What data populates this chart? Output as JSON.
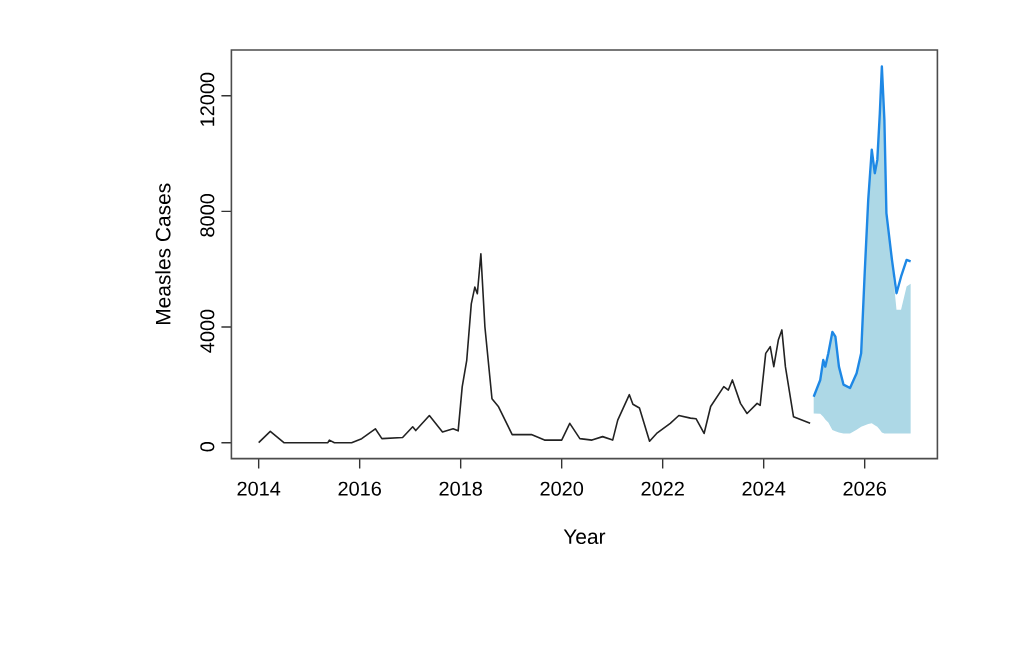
{
  "chart_data": {
    "type": "line",
    "xlabel": "Year",
    "ylabel": "Measles Cases",
    "xlim": [
      2013.46,
      2027.44
    ],
    "ylim": [
      -550,
      13580
    ],
    "xticks": [
      2014,
      2016,
      2018,
      2020,
      2022,
      2024,
      2026
    ],
    "yticks": [
      0,
      4000,
      8000,
      12000
    ],
    "series": [
      {
        "color": "#222222",
        "x": [
          2014.0,
          2014.23,
          2014.5,
          2015.37,
          2015.4,
          2015.5,
          2015.84,
          2016.04,
          2016.31,
          2016.44,
          2016.85,
          2017.05,
          2017.11,
          2017.38,
          2017.64,
          2017.85,
          2017.95,
          2018.03,
          2018.12,
          2018.21,
          2018.28,
          2018.33,
          2018.4,
          2018.48,
          2018.62,
          2018.75,
          2019.02,
          2019.4,
          2019.66,
          2020.0,
          2020.16,
          2020.36,
          2020.6,
          2020.81,
          2021.01,
          2021.11,
          2021.34,
          2021.41,
          2021.54,
          2021.74,
          2021.88,
          2022.15,
          2022.32,
          2022.55,
          2022.66,
          2022.82,
          2022.95,
          2023.21,
          2023.3,
          2023.38,
          2023.54,
          2023.67,
          2023.87,
          2023.93,
          2024.04,
          2024.13,
          2024.2,
          2024.29,
          2024.36,
          2024.43,
          2024.59,
          2024.92
        ],
        "values": [
          0,
          390,
          0,
          0,
          90,
          0,
          0,
          140,
          480,
          140,
          180,
          550,
          420,
          940,
          370,
          480,
          410,
          1930,
          2850,
          4800,
          5380,
          5150,
          6530,
          4000,
          1520,
          1240,
          280,
          280,
          90,
          90,
          670,
          140,
          90,
          210,
          90,
          780,
          1660,
          1330,
          1200,
          50,
          320,
          670,
          940,
          850,
          830,
          320,
          1250,
          1940,
          1820,
          2170,
          1360,
          1010,
          1360,
          1290,
          3090,
          3320,
          2630,
          3550,
          3900,
          2630,
          900,
          670
        ]
      },
      {
        "color": "#1e88e5",
        "x": [
          2024.99,
          2025.12,
          2025.18,
          2025.22,
          2025.28,
          2025.36,
          2025.42,
          2025.49,
          2025.58,
          2025.71,
          2025.84,
          2025.93,
          2026.0,
          2026.07,
          2026.14,
          2026.2,
          2026.25,
          2026.3,
          2026.34,
          2026.39,
          2026.43,
          2026.54,
          2026.63,
          2026.72,
          2026.83,
          2026.91
        ],
        "values": [
          1590,
          2170,
          2860,
          2630,
          3090,
          3830,
          3670,
          2630,
          2010,
          1890,
          2400,
          3090,
          5860,
          8400,
          10130,
          9320,
          9780,
          11400,
          13010,
          11170,
          7940,
          6320,
          5170,
          5740,
          6320,
          6270
        ],
        "lower": [
          1010,
          1000,
          900,
          800,
          700,
          440,
          400,
          350,
          320,
          320,
          450,
          550,
          600,
          650,
          670,
          600,
          550,
          450,
          350,
          320,
          320,
          320,
          320,
          320,
          320,
          320
        ],
        "upper": [
          1590,
          2170,
          2860,
          2630,
          3090,
          3830,
          3670,
          2630,
          2010,
          1890,
          2400,
          3090,
          5860,
          8400,
          10130,
          9320,
          9780,
          11400,
          12800,
          11000,
          7900,
          6200,
          4600,
          4600,
          5400,
          5500
        ]
      }
    ]
  }
}
